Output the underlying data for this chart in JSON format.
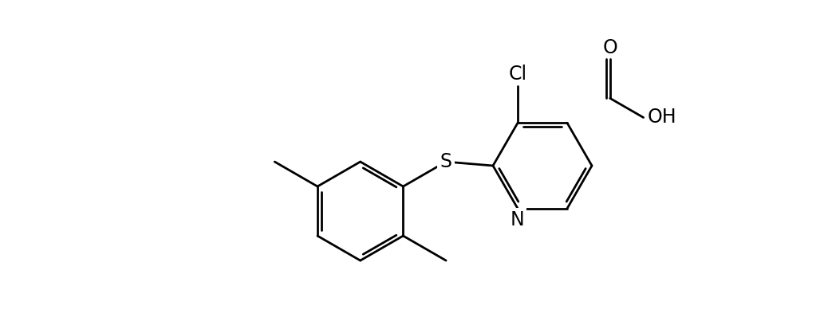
{
  "background_color": "#ffffff",
  "line_color": "#000000",
  "line_width": 2.0,
  "font_size_atom": 17,
  "figsize": [
    10.38,
    4.13
  ],
  "dpi": 100,
  "xlim": [
    0,
    10.38
  ],
  "ylim": [
    0,
    4.13
  ]
}
